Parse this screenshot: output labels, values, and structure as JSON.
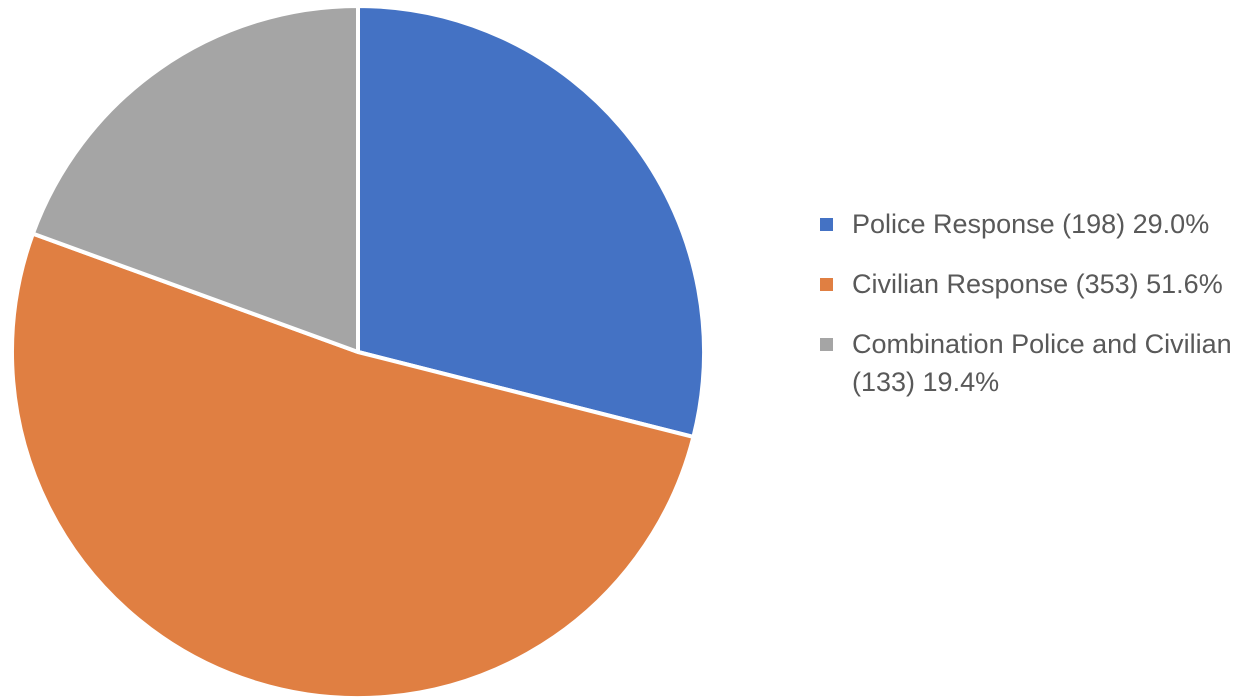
{
  "chart_data": {
    "type": "pie",
    "title": "",
    "start_angle": "12 o'clock",
    "direction": "clockwise",
    "legend_position": "right",
    "slices": [
      {
        "label": "Police Response (198) 29.0%",
        "category": "Police Response",
        "count": 198,
        "percent": 29.0,
        "color": "#4472C4"
      },
      {
        "label": "Civilian Response (353) 51.6%",
        "category": "Civilian Response",
        "count": 353,
        "percent": 51.6,
        "color": "#E07F42"
      },
      {
        "label": "Combination Police and Civilian (133) 19.4%",
        "category": "Combination Police and Civilian",
        "count": 133,
        "percent": 19.4,
        "color": "#A5A5A5"
      }
    ]
  }
}
